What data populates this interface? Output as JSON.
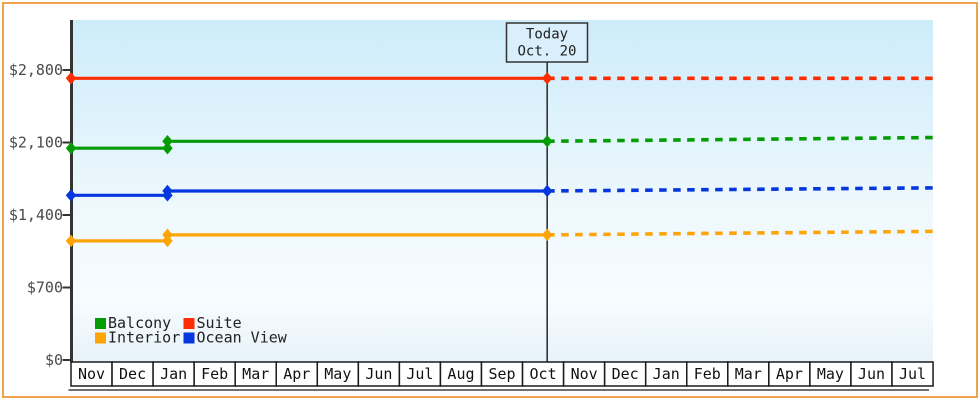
{
  "frame": {
    "border_color": "#efa24e",
    "background_color": "#ffffff"
  },
  "chart_data": {
    "type": "line",
    "title": "",
    "xlabel": "",
    "ylabel": "",
    "grid": false,
    "plot_background_top": "#cdecfa",
    "plot_background_mid": "#eef8fd",
    "plot_background_bottom": "#e7f2f9",
    "axis_color": "#333333",
    "months": [
      "Nov",
      "Dec",
      "Jan",
      "Feb",
      "Mar",
      "Apr",
      "May",
      "Jun",
      "Jul",
      "Aug",
      "Sep",
      "Oct",
      "Nov",
      "Dec",
      "Jan",
      "Feb",
      "Mar",
      "Apr",
      "May",
      "Jun",
      "Jul"
    ],
    "y_ticks": [
      {
        "label": "$0",
        "value": 0
      },
      {
        "label": "$700",
        "value": 700
      },
      {
        "label": "$1,400",
        "value": 1400
      },
      {
        "label": "$2,100",
        "value": 2100
      },
      {
        "label": "$2,800",
        "value": 2800
      }
    ],
    "ylim": [
      0,
      2900
    ],
    "x_months_total": 21,
    "today": {
      "label_line1": "Today",
      "label_line2": "Oct. 20",
      "month_position": 11.6,
      "box_bg": "#d9effb",
      "box_border": "#333333"
    },
    "series": [
      {
        "name": "Suite",
        "color": "#fb2d02",
        "history": [
          {
            "m": 0,
            "v": 2720
          },
          {
            "m": 11.6,
            "v": 2720
          }
        ],
        "forecast_end_value": 2720
      },
      {
        "name": "Balcony",
        "color": "#049c04",
        "history": [
          {
            "m": 0,
            "v": 2045
          },
          {
            "m": 2.35,
            "v": 2045
          },
          {
            "m": 2.35,
            "v": 2112
          },
          {
            "m": 11.6,
            "v": 2112
          }
        ],
        "forecast_end_value": 2148
      },
      {
        "name": "Ocean View",
        "color": "#0636dd",
        "history": [
          {
            "m": 0,
            "v": 1590
          },
          {
            "m": 2.35,
            "v": 1590
          },
          {
            "m": 2.35,
            "v": 1632
          },
          {
            "m": 11.6,
            "v": 1632
          }
        ],
        "forecast_end_value": 1662
      },
      {
        "name": "Interior",
        "color": "#fea407",
        "history": [
          {
            "m": 0,
            "v": 1150
          },
          {
            "m": 2.35,
            "v": 1150
          },
          {
            "m": 2.35,
            "v": 1208
          },
          {
            "m": 11.6,
            "v": 1208
          }
        ],
        "forecast_end_value": 1242
      }
    ],
    "legend": {
      "position": "bottom-left-inside-plot",
      "rows": [
        [
          "Balcony",
          "Suite"
        ],
        [
          "Interior",
          "Ocean View"
        ]
      ],
      "text_color": "#222222"
    }
  }
}
